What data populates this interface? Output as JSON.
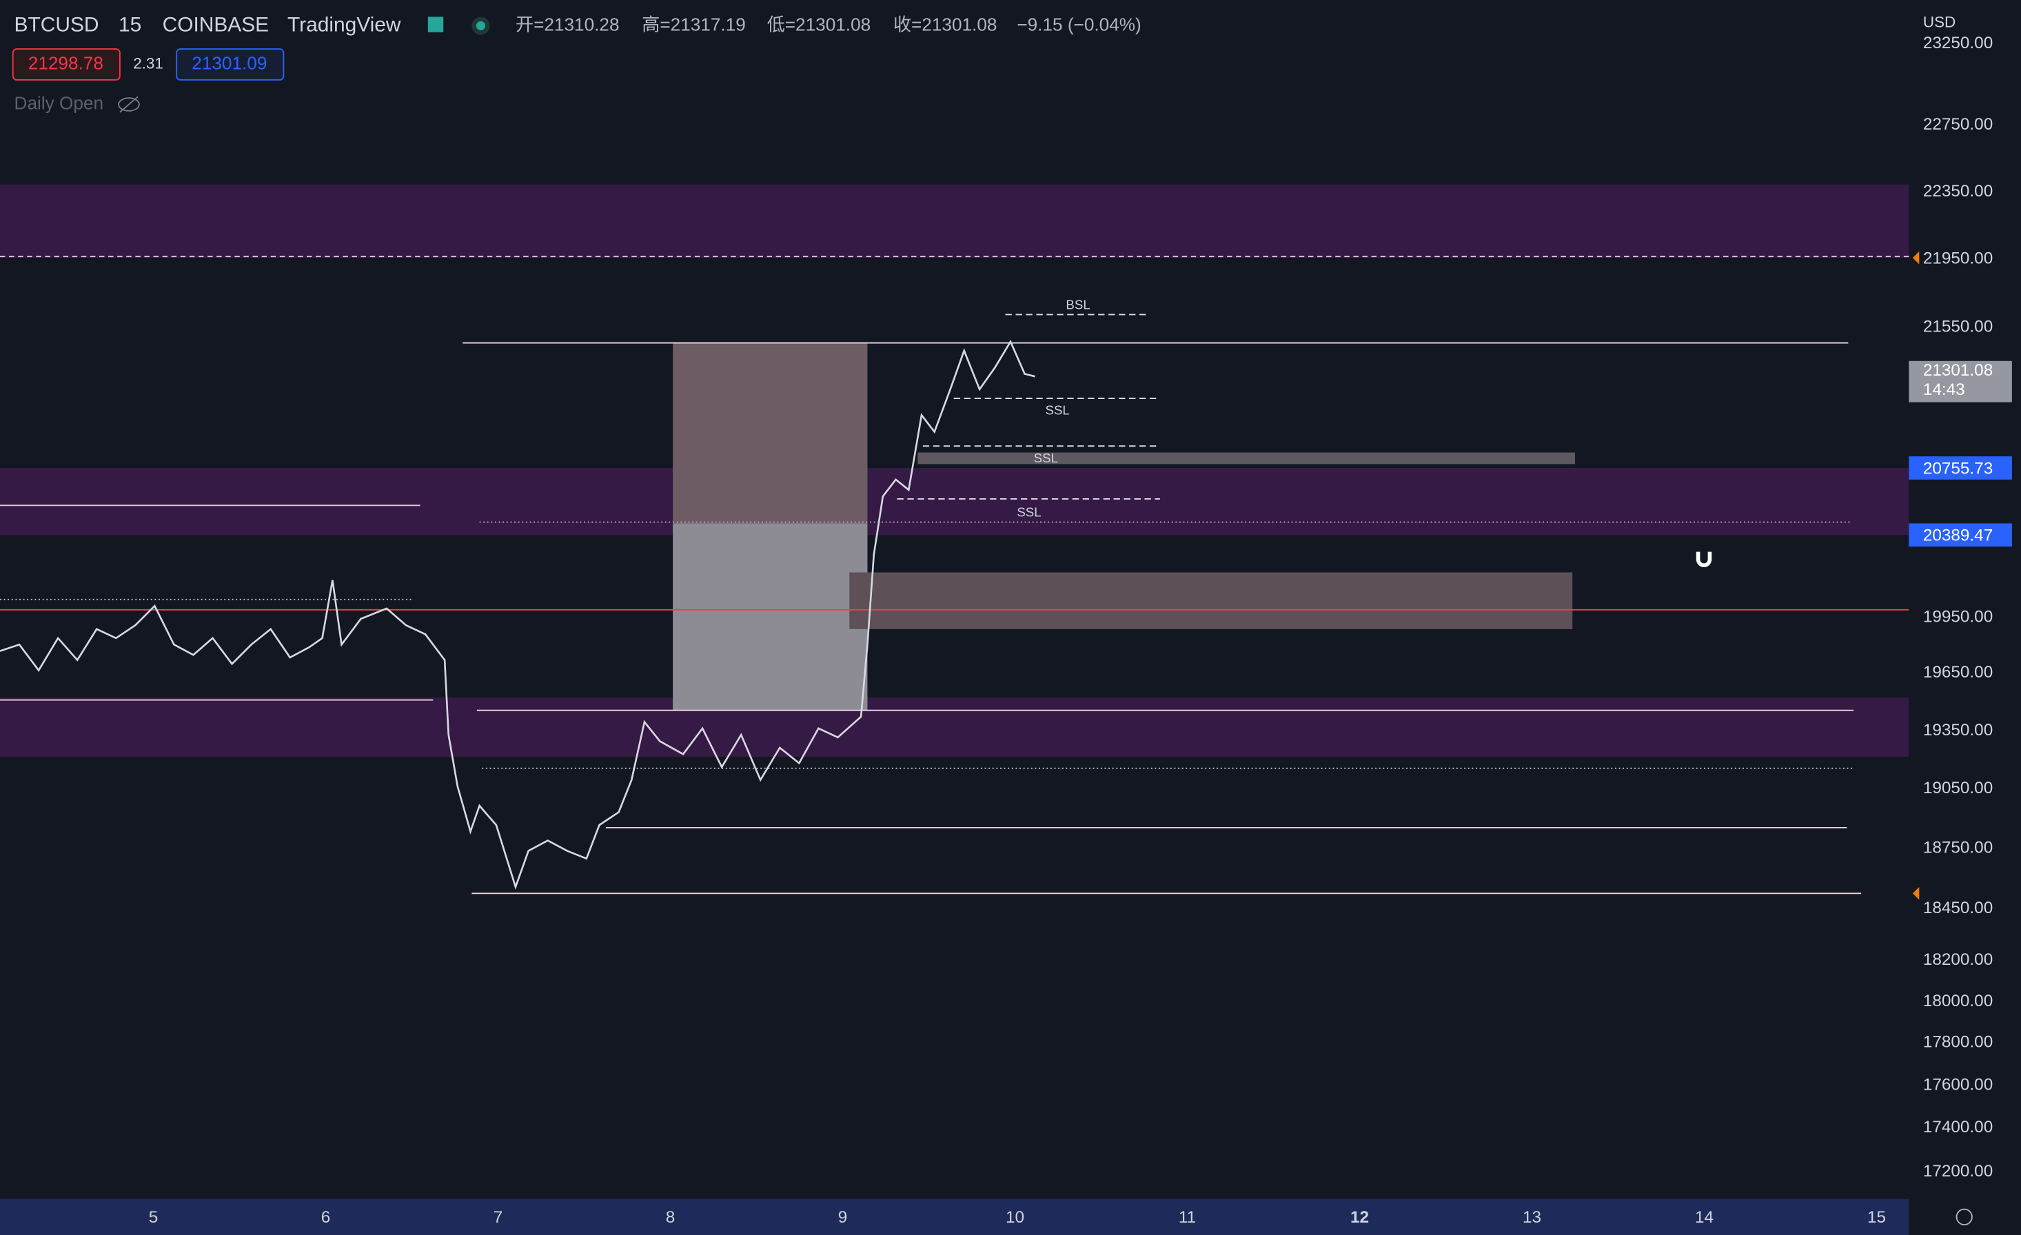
{
  "header": {
    "symbol": "BTCUSD",
    "interval": "15",
    "exchange": "COINBASE",
    "source": "TradingView",
    "open": "开=21310.28",
    "high": "高=21317.19",
    "low": "低=21301.08",
    "close": "收=21301.08",
    "change": "−9.15 (−0.04%)",
    "sell": "21298.78",
    "spread": "2.31",
    "buy": "21301.09",
    "indicator": "Daily Open"
  },
  "price_axis": {
    "currency": "USD",
    "labels": [
      "23250.00",
      "22750.00",
      "22350.00",
      "21950.00",
      "21550.00",
      "19950.00",
      "19650.00",
      "19350.00",
      "19050.00",
      "18750.00",
      "18450.00",
      "18200.00",
      "18000.00",
      "17800.00",
      "17600.00",
      "17400.00",
      "17200.00"
    ],
    "last_price": "21301.08",
    "countdown": "14:43",
    "marker_1": "20755.73",
    "marker_2": "20389.47"
  },
  "time_axis": {
    "labels": [
      "5",
      "6",
      "7",
      "8",
      "9",
      "10",
      "11",
      "12",
      "13",
      "14",
      "15"
    ]
  },
  "annotations": {
    "bsl": "BSL",
    "ssl_1": "SSL",
    "ssl_2": "SSL",
    "ssl_3": "SSL"
  }
}
